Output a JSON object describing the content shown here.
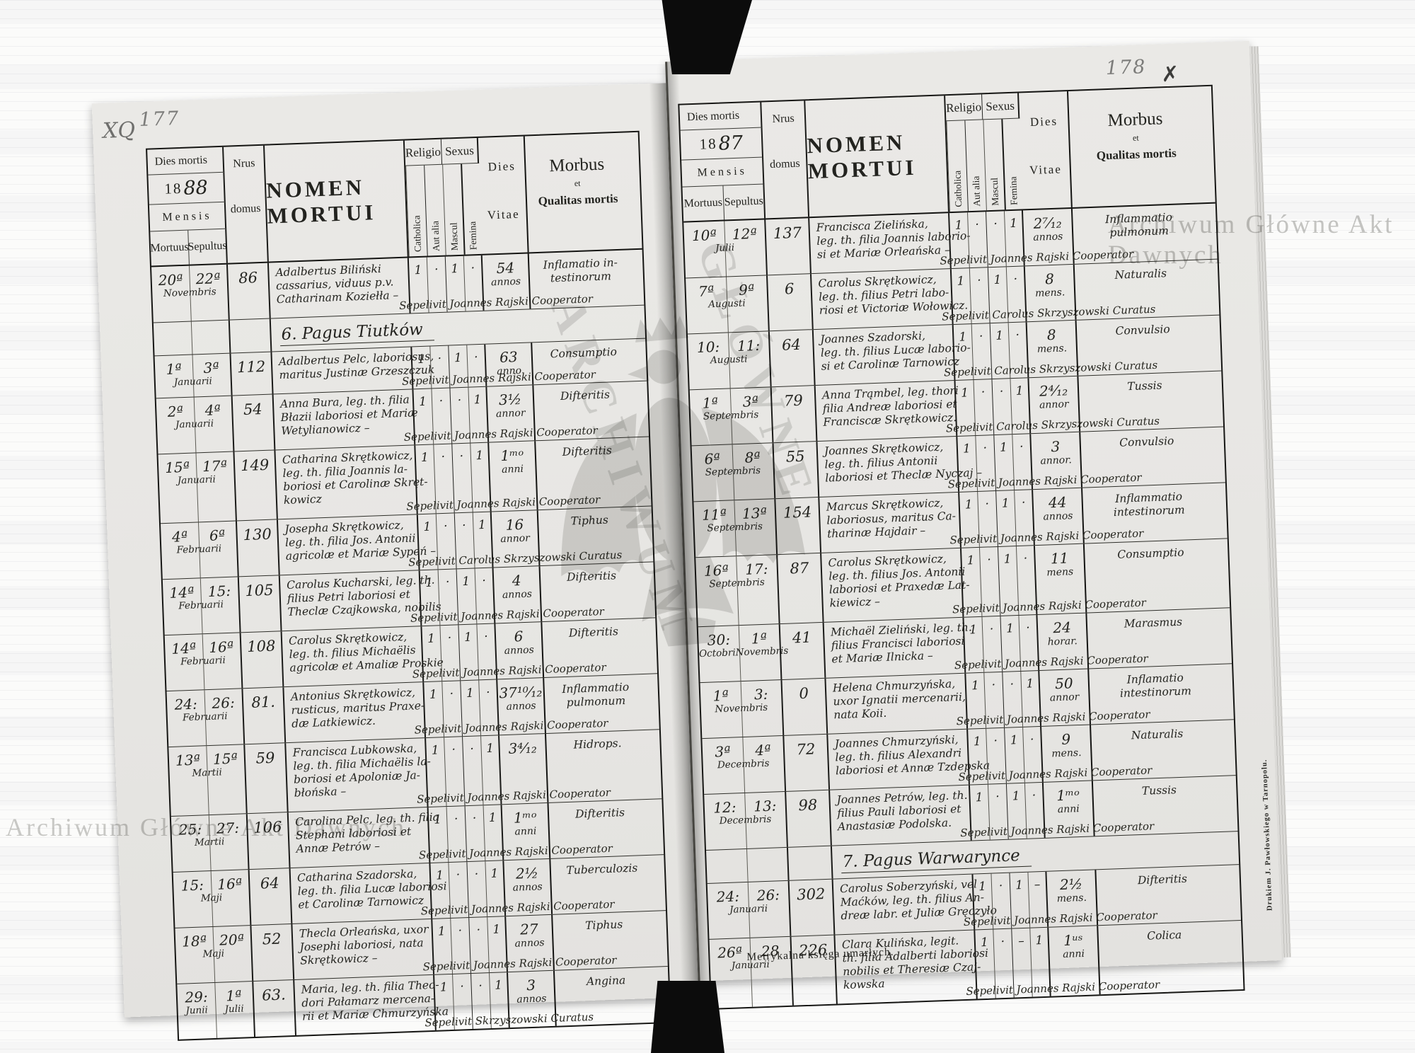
{
  "watermarks": {
    "top_right": "Archiwum Główne Akt Dawnych",
    "bottom_left": "Archiwum Główne Akt Dawnych",
    "diagonal_1": "ARCHIWUM",
    "diagonal_2": "GŁÓWNE"
  },
  "labels": {
    "dies_mortis": "Dies mortis",
    "mensis": "Mensis",
    "mortuus": "Mortuus",
    "sepultus": "Sepultus",
    "nrus": "Nrus",
    "domus": "domus",
    "nomen_mortui": "NOMEN MORTUI",
    "religio": "Religio",
    "catholica": "Catholica",
    "aut_alia": "Aut alia",
    "sexus": "Sexus",
    "mascul": "Mascul",
    "femina": "Femina",
    "dies": "Dies",
    "vitae": "Vitae",
    "morbus": "Morbus",
    "et": "et",
    "qualitas_mortis": "Qualitas mortis"
  },
  "footer": {
    "caption": "Metrykalna księga umarłych.",
    "printer": "Drukiem J. Pawłowskiego w Tarnopolu."
  },
  "left_page": {
    "page_number": "177",
    "corner_mark": "XQ",
    "year_printed": "18",
    "year_hand": "88",
    "rows": [
      {
        "type": "entry",
        "mortuus": "20ª",
        "sepultus": "22ª",
        "months": [
          "Novembris"
        ],
        "house": "86",
        "name": [
          "Adalbertus Biliński",
          "cassarius, viduus p.v.",
          "Catharinam Koziełła –"
        ],
        "religio": [
          "1",
          "·",
          "1",
          "·"
        ],
        "vitae": "54",
        "vitae_unit": "annos",
        "morbus": [
          "Inflamatio in-",
          "testinorum"
        ],
        "sepelivit": "Sepelivit Joannes Rajski Cooperator"
      },
      {
        "type": "section",
        "text": "6. Pagus Tiutków"
      },
      {
        "type": "entry",
        "mortuus": "1ª",
        "sepultus": "3ª",
        "months": [
          "Januarii"
        ],
        "house": "112",
        "name": [
          "Adalbertus Pelc, laboriosus,",
          "maritus Justinæ Grzeszczuk"
        ],
        "religio": [
          "1",
          "·",
          "1",
          "·"
        ],
        "vitae": "63",
        "vitae_unit": "anno",
        "morbus": [
          "Consumptio"
        ],
        "sepelivit": "Sepelivit Joannes Rajski Cooperator"
      },
      {
        "type": "entry",
        "mortuus": "2ª",
        "sepultus": "4ª",
        "months": [
          "Januarii"
        ],
        "house": "54",
        "name": [
          "Anna Bura, leg. th. filia",
          "Błazii laboriosi et Mariæ",
          "Wetylianowicz –"
        ],
        "religio": [
          "1",
          "·",
          "·",
          "1"
        ],
        "vitae": "3½",
        "vitae_unit": "annor",
        "morbus": [
          "Difteritis"
        ],
        "sepelivit": "Sepelivit Joannes Rajski Cooperator"
      },
      {
        "type": "entry",
        "mortuus": "15ª",
        "sepultus": "17ª",
        "months": [
          "Januarii"
        ],
        "house": "149",
        "name": [
          "Catharina Skrętkowicz,",
          "leg. th. filia Joannis la-",
          "boriosi et Carolinæ Skręt-",
          "kowicz"
        ],
        "religio": [
          "1",
          "·",
          "·",
          "1"
        ],
        "vitae": "1ᵐᵒ",
        "vitae_unit": "anni",
        "morbus": [
          "Difteritis"
        ],
        "sepelivit": "Sepelivit Joannes Rajski Cooperator"
      },
      {
        "type": "entry",
        "mortuus": "4ª",
        "sepultus": "6ª",
        "months": [
          "Februarii"
        ],
        "house": "130",
        "name": [
          "Josepha Skrętkowicz,",
          "leg. th. filia Jos. Antonii",
          "agricolæ et Mariæ Sypeń –"
        ],
        "religio": [
          "1",
          "·",
          "·",
          "1"
        ],
        "vitae": "16",
        "vitae_unit": "annor",
        "morbus": [
          "Tiphus"
        ],
        "sepelivit": "Sepelivit Carolus Skrzyszowski Curatus"
      },
      {
        "type": "entry",
        "mortuus": "14ª",
        "sepultus": "15:",
        "months": [
          "Februarii"
        ],
        "house": "105",
        "name": [
          "Carolus Kucharski, leg. th.",
          "filius Petri laboriosi et",
          "Theclæ Czajkowska, nobilis"
        ],
        "religio": [
          "1",
          "·",
          "1",
          "·"
        ],
        "vitae": "4",
        "vitae_unit": "annos",
        "morbus": [
          "Difteritis"
        ],
        "sepelivit": "Sepelivit Joannes Rajski Cooperator"
      },
      {
        "type": "entry",
        "mortuus": "14ª",
        "sepultus": "16ª",
        "months": [
          "Februarii"
        ],
        "house": "108",
        "name": [
          "Carolus Skrętkowicz,",
          "leg. th. filius Michaëlis",
          "agricolæ et Amaliæ Proskie"
        ],
        "religio": [
          "1",
          "·",
          "1",
          "·"
        ],
        "vitae": "6",
        "vitae_unit": "annos",
        "morbus": [
          "Difteritis"
        ],
        "sepelivit": "Sepelivit Joannes Rajski Cooperator"
      },
      {
        "type": "entry",
        "mortuus": "24:",
        "sepultus": "26:",
        "months": [
          "Februarii"
        ],
        "house": "81.",
        "name": [
          "Antonius Skrętkowicz,",
          "rusticus, maritus Praxe-",
          "dæ Latkiewicz."
        ],
        "religio": [
          "1",
          "·",
          "1",
          "·"
        ],
        "vitae": "37¹⁰⁄₁₂",
        "vitae_unit": "annos",
        "morbus": [
          "Inflammatio",
          "pulmonum"
        ],
        "sepelivit": "Sepelivit Joannes Rajski Cooperator"
      },
      {
        "type": "entry",
        "mortuus": "13ª",
        "sepultus": "15ª",
        "months": [
          "Martii"
        ],
        "house": "59",
        "name": [
          "Francisca Lubkowska,",
          "leg. th. filia Michaëlis la-",
          "boriosi et Apoloniæ Ja-",
          "błońska –"
        ],
        "religio": [
          "1",
          "·",
          "·",
          "1"
        ],
        "vitae": "3⁴⁄₁₂",
        "vitae_unit": "",
        "morbus": [
          "Hidrops."
        ],
        "sepelivit": "Sepelivit Joannes Rajski Cooperator"
      },
      {
        "type": "entry",
        "mortuus": "25:",
        "sepultus": "27:",
        "months": [
          "Martii"
        ],
        "house": "106",
        "name": [
          "Carolina Pelc, leg. th. filia",
          "Stephani laboriosi et",
          "Annæ Petrów –"
        ],
        "religio": [
          "1",
          "·",
          "·",
          "1"
        ],
        "vitae": "1ᵐᵒ",
        "vitae_unit": "anni",
        "morbus": [
          "Difteritis"
        ],
        "sepelivit": "Sepelivit Joannes Rajski Cooperator"
      },
      {
        "type": "entry",
        "mortuus": "15:",
        "sepultus": "16ª",
        "months": [
          "Maji"
        ],
        "house": "64",
        "name": [
          "Catharina Szadorska,",
          "leg. th. filia Lucæ laboriosi",
          "et Carolinæ Tarnowicz"
        ],
        "religio": [
          "1",
          "·",
          "·",
          "1"
        ],
        "vitae": "2½",
        "vitae_unit": "annos",
        "morbus": [
          "Tuberculozis"
        ],
        "sepelivit": "Sepelivit Joannes Rajski Cooperator"
      },
      {
        "type": "entry",
        "mortuus": "18ª",
        "sepultus": "20ª",
        "months": [
          "Maji"
        ],
        "house": "52",
        "name": [
          "Thecla Orleańska, uxor",
          "Josephi laboriosi, nata",
          "Skrętkowicz –"
        ],
        "religio": [
          "1",
          "·",
          "·",
          "1"
        ],
        "vitae": "27",
        "vitae_unit": "annos",
        "morbus": [
          "Tiphus"
        ],
        "sepelivit": "Sepelivit Joannes Rajski Cooperator"
      },
      {
        "type": "entry",
        "mortuus": "29:",
        "sepultus": "1ª",
        "months": [
          "Junii",
          "Julii"
        ],
        "house": "63.",
        "name": [
          "Maria, leg. th. filia Theo-",
          "dori Pałamarz mercena-",
          "rii et Mariæ Chmurzyńska"
        ],
        "religio": [
          "1",
          "·",
          "·",
          "1"
        ],
        "vitae": "3",
        "vitae_unit": "annos",
        "morbus": [
          "Angina"
        ],
        "sepelivit": "Sepelivit Skrzyszowski Curatus"
      }
    ]
  },
  "right_page": {
    "page_number": "178",
    "corner_mark": "✗",
    "year_printed": "18",
    "year_hand": "87",
    "rows": [
      {
        "type": "entry",
        "mortuus": "10ª",
        "sepultus": "12ª",
        "months": [
          "Julii"
        ],
        "house": "137",
        "name": [
          "Francisca Zielińska,",
          "leg. th. filia Joannis laborio-",
          "si et Mariæ Orleańska –"
        ],
        "religio": [
          "1",
          "·",
          "·",
          "1"
        ],
        "vitae": "2⁷⁄₁₂",
        "vitae_unit": "annos",
        "morbus": [
          "Inflammatio",
          "pulmonum"
        ],
        "sepelivit": "Sepelivit Joannes Rajski Cooperator"
      },
      {
        "type": "entry",
        "mortuus": "7ª",
        "sepultus": "9ª",
        "months": [
          "Augusti"
        ],
        "house": "6",
        "name": [
          "Carolus Skrętkowicz,",
          "leg. th. filius Petri labo-",
          "riosi et Victoriæ Wołowicz."
        ],
        "religio": [
          "1",
          "·",
          "1",
          "·"
        ],
        "vitae": "8",
        "vitae_unit": "mens.",
        "morbus": [
          "Naturalis"
        ],
        "sepelivit": "Sepelivit Carolus Skrzyszowski Curatus"
      },
      {
        "type": "entry",
        "mortuus": "10:",
        "sepultus": "11:",
        "months": [
          "Augusti"
        ],
        "house": "64",
        "name": [
          "Joannes Szadorski,",
          "leg. th. filius Lucæ laborio-",
          "si et Carolinæ Tarnowicz"
        ],
        "religio": [
          "1",
          "·",
          "1",
          "·"
        ],
        "vitae": "8",
        "vitae_unit": "mens.",
        "morbus": [
          "Convulsio"
        ],
        "sepelivit": "Sepelivit Carolus Skrzyszowski Curatus"
      },
      {
        "type": "entry",
        "mortuus": "1ª",
        "sepultus": "3ª",
        "months": [
          "Septembris"
        ],
        "house": "79",
        "name": [
          "Anna Trąmbel, leg. thori",
          "filia Andreæ laboriosi et",
          "Franciscæ Skrętkowicz."
        ],
        "religio": [
          "1",
          "·",
          "·",
          "1"
        ],
        "vitae": "2⁴⁄₁₂",
        "vitae_unit": "annor",
        "morbus": [
          "Tussis"
        ],
        "sepelivit": "Sepelivit Carolus Skrzyszowski Curatus"
      },
      {
        "type": "entry",
        "mortuus": "6ª",
        "sepultus": "8ª",
        "months": [
          "Septembris"
        ],
        "house": "55",
        "name": [
          "Joannes Skrętkowicz,",
          "leg. th. filius Antonii",
          "laboriosi et Theclæ Nyczaj –"
        ],
        "religio": [
          "1",
          "·",
          "1",
          "·"
        ],
        "vitae": "3",
        "vitae_unit": "annor.",
        "morbus": [
          "Convulsio"
        ],
        "sepelivit": "Sepelivit Joannes Rajski Cooperator"
      },
      {
        "type": "entry",
        "mortuus": "11ª",
        "sepultus": "13ª",
        "months": [
          "Septembris"
        ],
        "house": "154",
        "name": [
          "Marcus Skrętkowicz,",
          "laboriosus, maritus Ca-",
          "tharinæ Hajdair –"
        ],
        "religio": [
          "1",
          "·",
          "1",
          "·"
        ],
        "vitae": "44",
        "vitae_unit": "annos",
        "morbus": [
          "Inflammatio",
          "intestinorum"
        ],
        "sepelivit": "Sepelivit Joannes Rajski Cooperator"
      },
      {
        "type": "entry",
        "mortuus": "16ª",
        "sepultus": "17:",
        "months": [
          "Septembris"
        ],
        "house": "87",
        "name": [
          "Carolus Skrętkowicz,",
          "leg. th. filius Jos. Antonii",
          "laboriosi et Praxedæ Lat-",
          "kiewicz –"
        ],
        "religio": [
          "1",
          "·",
          "1",
          "·"
        ],
        "vitae": "11",
        "vitae_unit": "mens",
        "morbus": [
          "Consumptio"
        ],
        "sepelivit": "Sepelivit Joannes Rajski Cooperator"
      },
      {
        "type": "entry",
        "mortuus": "30:",
        "sepultus": "1ª",
        "months": [
          "Octobri",
          "Novembris"
        ],
        "house": "41",
        "name": [
          "Michaël Zieliński, leg. th.",
          "filius Francisci laboriosi",
          "et Mariæ Ilnicka –"
        ],
        "religio": [
          "1",
          "·",
          "1",
          "·"
        ],
        "vitae": "24",
        "vitae_unit": "horar.",
        "morbus": [
          "Marasmus"
        ],
        "sepelivit": "Sepelivit Joannes Rajski Cooperator"
      },
      {
        "type": "entry",
        "mortuus": "1ª",
        "sepultus": "3:",
        "months": [
          "Novembris"
        ],
        "house": "0",
        "name": [
          "Helena Chmurzyńska,",
          "uxor Ignatii mercenarii,",
          "nata Koii."
        ],
        "religio": [
          "1",
          "·",
          "·",
          "1"
        ],
        "vitae": "50",
        "vitae_unit": "annor",
        "morbus": [
          "Inflamatio",
          "intestinorum"
        ],
        "sepelivit": "Sepelivit Joannes Rajski Cooperator"
      },
      {
        "type": "entry",
        "mortuus": "3ª",
        "sepultus": "4ª",
        "months": [
          "Decembris"
        ],
        "house": "72",
        "name": [
          "Joannes Chmurzyński,",
          "leg. th. filius Alexandri",
          "laboriosi et Annæ Tzdepska"
        ],
        "religio": [
          "1",
          "·",
          "1",
          "·"
        ],
        "vitae": "9",
        "vitae_unit": "mens.",
        "morbus": [
          "Naturalis"
        ],
        "sepelivit": "Sepelivit Joannes Rajski Cooperator"
      },
      {
        "type": "entry",
        "mortuus": "12:",
        "sepultus": "13:",
        "months": [
          "Decembris"
        ],
        "house": "98",
        "name": [
          "Joannes Petrów, leg. th.",
          "filius Pauli laboriosi et",
          "Anastasiæ Podolska."
        ],
        "religio": [
          "1",
          "·",
          "1",
          "·"
        ],
        "vitae": "1ᵐᵒ",
        "vitae_unit": "anni",
        "morbus": [
          "Tussis"
        ],
        "sepelivit": "Sepelivit Joannes Rajski Cooperator"
      },
      {
        "type": "section",
        "text": "7. Pagus Warwarynce"
      },
      {
        "type": "entry",
        "mortuus": "24:",
        "sepultus": "26:",
        "months": [
          "Januarii"
        ],
        "house": "302",
        "name": [
          "Carolus Soberzyński, vel",
          "Maćków, leg. th. filius An-",
          "dreæ labr. et Juliæ Gręczyło"
        ],
        "religio": [
          "1",
          "·",
          "1",
          "–"
        ],
        "vitae": "2½",
        "vitae_unit": "mens.",
        "morbus": [
          "Difteritis"
        ],
        "sepelivit": "Sepelivit Joannes Rajski Cooperator"
      },
      {
        "type": "entry",
        "mortuus": "26ª",
        "sepultus": "28",
        "months": [
          "Januarii"
        ],
        "house": "226",
        "name": [
          "Clara Kulińska, legit.",
          "th. filia Adalberti laboriosi",
          "nobilis et Theresiæ Czaj-",
          "kowska"
        ],
        "religio": [
          "1",
          "·",
          "–",
          "1"
        ],
        "vitae": "1ᵘˢ",
        "vitae_unit": "anni",
        "morbus": [
          "Colica"
        ],
        "sepelivit": "Sepelivit Joannes Rajski Cooperator"
      }
    ]
  }
}
